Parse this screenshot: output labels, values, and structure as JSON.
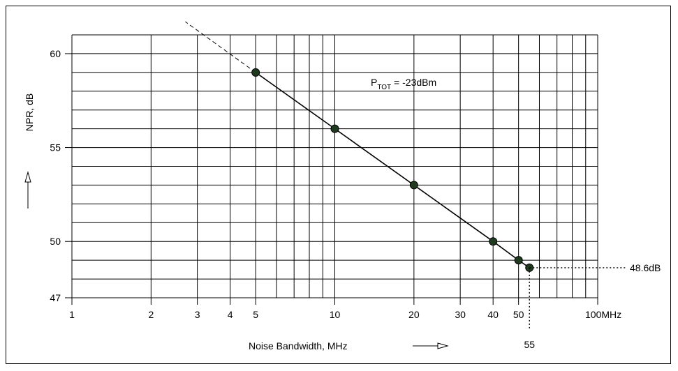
{
  "chart_data": {
    "type": "line",
    "xscale": "log",
    "xlim": [
      1,
      100
    ],
    "ylim": [
      47,
      61
    ],
    "x_ticks": [
      {
        "value": 1,
        "label": "1"
      },
      {
        "value": 2,
        "label": "2"
      },
      {
        "value": 3,
        "label": "3"
      },
      {
        "value": 4,
        "label": "4"
      },
      {
        "value": 5,
        "label": "5"
      },
      {
        "value": 10,
        "label": "10"
      },
      {
        "value": 20,
        "label": "20"
      },
      {
        "value": 30,
        "label": "30"
      },
      {
        "value": 40,
        "label": "40"
      },
      {
        "value": 50,
        "label": "50"
      },
      {
        "value": 100,
        "label": "100MHz"
      }
    ],
    "y_ticks": [
      {
        "value": 47,
        "label": "47"
      },
      {
        "value": 50,
        "label": "50"
      },
      {
        "value": 55,
        "label": "55"
      },
      {
        "value": 60,
        "label": "60"
      }
    ],
    "xlabel": "Noise Bandwidth, MHz",
    "ylabel": "NPR, dB",
    "grid": true,
    "series": [
      {
        "points": [
          {
            "x": 5,
            "y": 59
          },
          {
            "x": 10,
            "y": 56
          },
          {
            "x": 20,
            "y": 53
          },
          {
            "x": 40,
            "y": 50
          },
          {
            "x": 50,
            "y": 49
          },
          {
            "x": 55,
            "y": 48.6
          }
        ]
      }
    ],
    "extrapolation": {
      "from": {
        "x": 5,
        "y": 59
      },
      "to": {
        "x": 2.7,
        "y": 61.7
      }
    },
    "annotation": {
      "main": "P",
      "subscript": "TOT",
      "rest": " = -23dBm"
    },
    "marker_point": {
      "x": 55,
      "y": 48.6,
      "x_label": "55",
      "y_label": "48.6dB"
    },
    "colors": {
      "line": "#000000",
      "marker": "#1f3a1f",
      "grid": "#000000"
    }
  }
}
